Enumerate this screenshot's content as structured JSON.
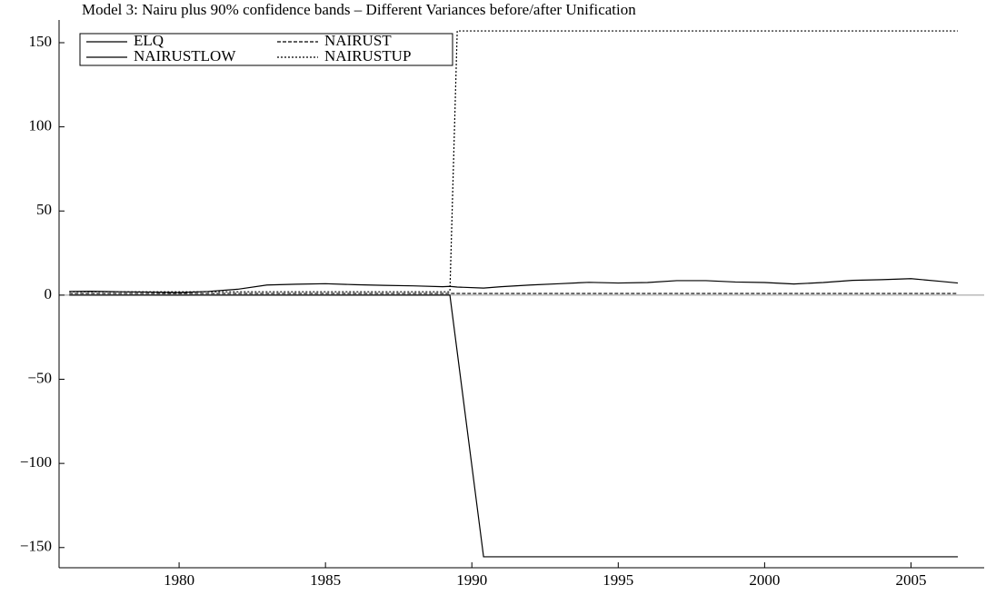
{
  "chart_data": {
    "type": "line",
    "title": "Model 3: Nairu plus 90% confidence bands – Different Variances before/after Unification",
    "x": [
      1976.25,
      1977,
      1978,
      1979,
      1980,
      1981,
      1982,
      1983,
      1984,
      1985,
      1986,
      1987,
      1988,
      1989,
      1989.25,
      1989.5,
      1990.4,
      1991,
      1992,
      1993,
      1994,
      1995,
      1996,
      1997,
      1998,
      1999,
      2000,
      2001,
      2002,
      2003,
      2004,
      2005,
      2006,
      2006.6
    ],
    "series": [
      {
        "name": "ELQ",
        "color": "#000000",
        "dash": "none",
        "values": [
          2.2,
          2.3,
          2.0,
          1.8,
          1.5,
          2.2,
          3.5,
          6.0,
          6.5,
          6.8,
          6.2,
          5.8,
          5.5,
          5.0,
          5.2,
          4.8,
          4.2,
          5.0,
          6.0,
          6.8,
          7.6,
          7.2,
          7.5,
          8.6,
          8.6,
          7.8,
          7.5,
          6.6,
          7.5,
          8.8,
          9.2,
          9.8,
          8.2,
          7.2
        ]
      },
      {
        "name": "NAIRUST",
        "color": "#000000",
        "dash": "4 2",
        "values": [
          1.0,
          1.0,
          1.0,
          1.0,
          1.0,
          1.0,
          1.0,
          1.0,
          1.0,
          1.0,
          1.0,
          1.0,
          1.0,
          1.0,
          1.0,
          1.0,
          1.0,
          1.0,
          1.0,
          1.0,
          1.0,
          1.0,
          1.0,
          1.0,
          1.0,
          1.0,
          1.0,
          1.0,
          1.0,
          1.0,
          1.0,
          1.0,
          1.0,
          1.0
        ]
      },
      {
        "name": "NAIRUSTLOW",
        "color": "#000000",
        "dash": "none",
        "values": [
          0,
          0,
          0,
          0,
          0,
          0,
          0,
          0,
          0,
          0,
          0,
          0,
          0,
          0,
          0,
          -33.8,
          -155.5,
          -155.5,
          -155.5,
          -155.5,
          -155.5,
          -155.5,
          -155.5,
          -155.5,
          -155.5,
          -155.5,
          -155.5,
          -155.5,
          -155.5,
          -155.5,
          -155.5,
          -155.5,
          -155.5,
          -155.5
        ]
      },
      {
        "name": "NAIRUSTUP",
        "color": "#000000",
        "dash": "2 2",
        "values": [
          2.0,
          2.0,
          2.0,
          2.0,
          2.0,
          2.0,
          2.0,
          2.0,
          2.0,
          2.0,
          2.0,
          2.0,
          2.0,
          2.0,
          2.0,
          157,
          157,
          157,
          157,
          157,
          157,
          157,
          157,
          157,
          157,
          157,
          157,
          157,
          157,
          157,
          157,
          157,
          157,
          157
        ]
      }
    ],
    "xlim": [
      1975.9,
      2007.5
    ],
    "xticks": [
      1980,
      1985,
      1990,
      1995,
      2000,
      2005
    ],
    "ylim": [
      -162,
      163.5
    ],
    "yticks": [
      {
        "value": -150,
        "label": "−150"
      },
      {
        "value": -100,
        "label": "−100"
      },
      {
        "value": -50,
        "label": "−50"
      },
      0,
      50,
      100,
      150
    ],
    "legend": "upper left"
  }
}
